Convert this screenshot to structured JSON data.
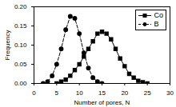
{
  "chart_data": {
    "type": "line",
    "x_label": "Number of pores, N",
    "y_label": "Frequency",
    "x": [
      2,
      3,
      4,
      5,
      6,
      7,
      8,
      9,
      10,
      11,
      12,
      13,
      14,
      15,
      16,
      17,
      18,
      19,
      20,
      21,
      22,
      23,
      24,
      25
    ],
    "series": [
      {
        "name": "Co",
        "color": "#000000",
        "marker": "square",
        "line_style": "solid",
        "values": [
          null,
          null,
          null,
          0.0,
          0.005,
          0.01,
          0.02,
          0.035,
          0.05,
          0.07,
          0.09,
          0.11,
          0.13,
          0.135,
          0.13,
          0.115,
          0.09,
          0.065,
          0.045,
          0.025,
          0.015,
          0.007,
          0.003,
          0.0
        ]
      },
      {
        "name": "B",
        "color": "#000000",
        "marker": "circle",
        "line_style": "dashed",
        "values": [
          0.0,
          0.005,
          0.02,
          0.05,
          0.09,
          0.14,
          0.175,
          0.17,
          0.13,
          0.08,
          0.04,
          0.015,
          0.005,
          0.0,
          null,
          null,
          null,
          null,
          null,
          null,
          null,
          null,
          null,
          null
        ]
      }
    ],
    "xlim": [
      0,
      30
    ],
    "xticks": [
      0,
      5,
      10,
      15,
      20,
      25,
      30
    ],
    "ylim": [
      0,
      0.2
    ],
    "yticks": [
      {
        "value": 0,
        "label": "0.00"
      },
      {
        "value": 0.05,
        "label": "0.05"
      },
      {
        "value": 0.1,
        "label": "0.10"
      },
      {
        "value": 0.15,
        "label": "0.15"
      },
      {
        "value": 0.2,
        "label": "0.20"
      }
    ],
    "legend": "upper right"
  }
}
